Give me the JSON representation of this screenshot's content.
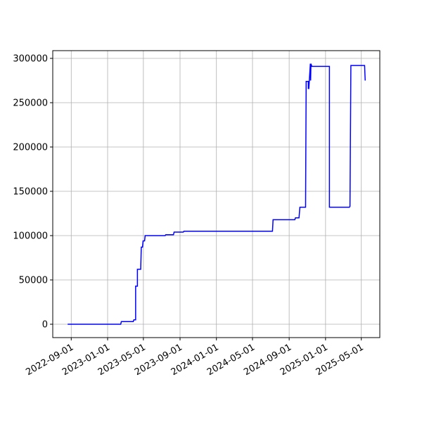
{
  "chart_data": {
    "type": "line",
    "x": [
      "2022-08-20",
      "2023-02-14",
      "2023-02-16",
      "2023-03-28",
      "2023-03-30",
      "2023-04-05",
      "2023-04-05",
      "2023-04-11",
      "2023-04-11",
      "2023-04-22",
      "2023-04-24",
      "2023-04-28",
      "2023-04-30",
      "2023-05-05",
      "2023-05-07",
      "2023-07-13",
      "2023-07-15",
      "2023-08-10",
      "2023-08-12",
      "2023-09-12",
      "2023-09-14",
      "2024-07-07",
      "2024-07-09",
      "2024-09-20",
      "2024-09-22",
      "2024-10-04",
      "2024-10-07",
      "2024-10-26",
      "2024-10-28",
      "2024-11-04",
      "2024-11-04",
      "2024-11-06",
      "2024-11-11",
      "2024-11-12",
      "2024-11-13",
      "2024-11-16",
      "2025-01-14",
      "2025-01-14",
      "2025-03-22",
      "2025-03-24",
      "2025-03-27",
      "2025-05-12",
      "2025-05-14"
    ],
    "series": [
      {
        "color": "#0000ff",
        "values": [
          0,
          0,
          3000,
          3000,
          5000,
          5000,
          43000,
          43000,
          62000,
          62000,
          87000,
          87000,
          94000,
          94000,
          100000,
          100000,
          101000,
          101000,
          104000,
          104000,
          105000,
          105000,
          118000,
          118000,
          120000,
          120000,
          132000,
          132000,
          274000,
          274000,
          266000,
          266000,
          294000,
          275000,
          294000,
          291000,
          291000,
          132000,
          132000,
          133000,
          292000,
          292000,
          275000
        ]
      }
    ],
    "xlim": [
      "2022-07-01",
      "2025-07-02"
    ],
    "xticks": [
      "2022-09-01",
      "2023-01-01",
      "2023-05-01",
      "2023-09-01",
      "2024-01-01",
      "2024-05-01",
      "2024-09-01",
      "2025-01-01",
      "2025-05-01"
    ],
    "ylim": [
      -15080,
      308730
    ],
    "yticks": [
      0,
      50000,
      100000,
      150000,
      200000,
      250000,
      300000
    ],
    "grid": true
  }
}
